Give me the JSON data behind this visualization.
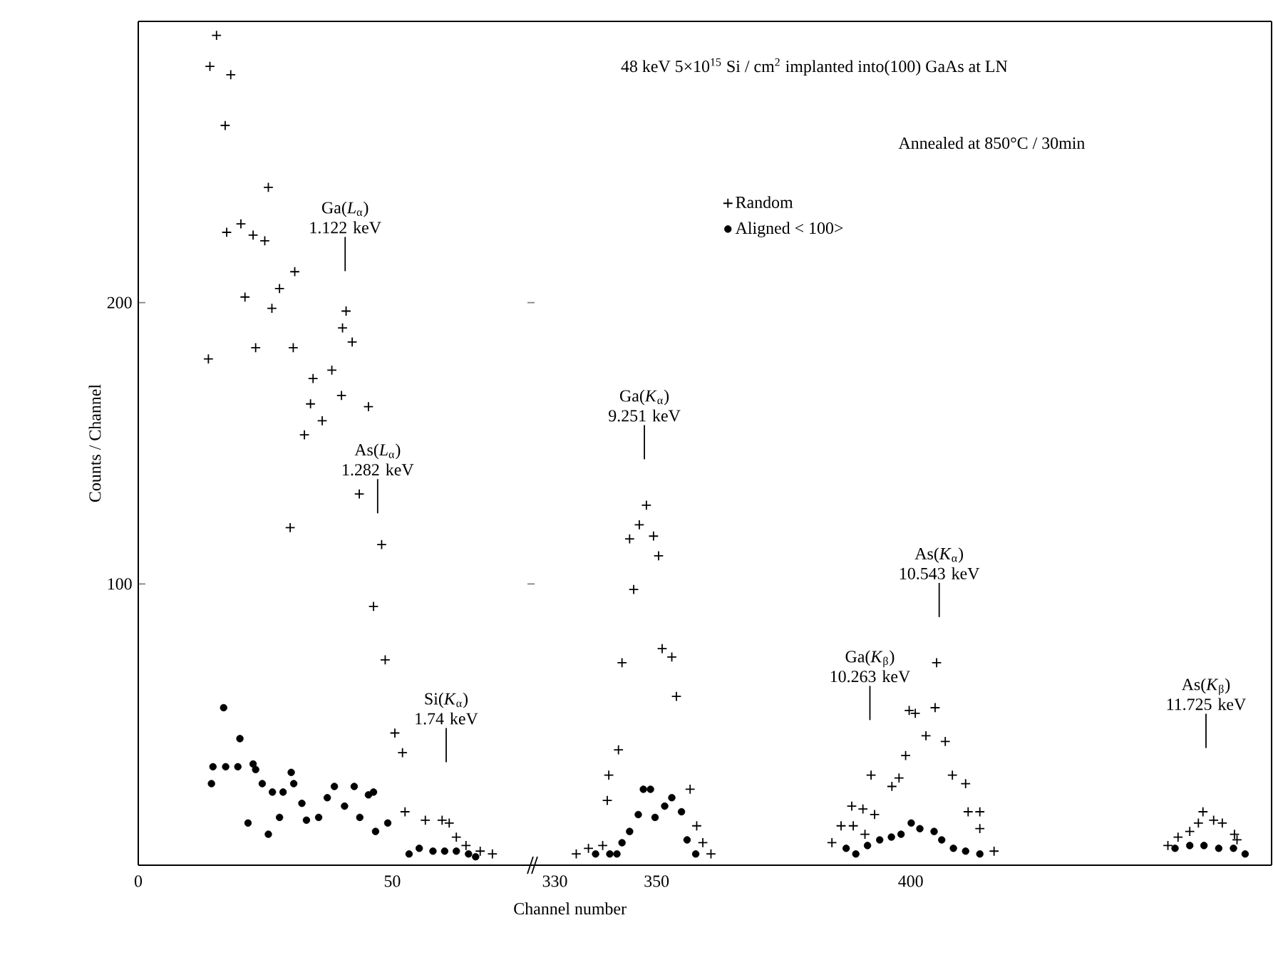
{
  "chart_data": [
    {
      "type": "scatter",
      "ylabel": "Counts / Channel",
      "xlim": [
        0,
        78
      ],
      "ylim": [
        0,
        300
      ],
      "xticks": [
        0,
        50
      ],
      "yticks": [
        100,
        200
      ],
      "series": [
        {
          "color": "#000000",
          "marker": "cross",
          "x": [
            15.4,
            14.1,
            18.2,
            17.1,
            25.6,
            17.4,
            20.2,
            22.6,
            24.9,
            30.8,
            27.8,
            21.0,
            26.3,
            40.9,
            40.2,
            42.1,
            13.8,
            23.1,
            30.5,
            34.4,
            38.1,
            40.0,
            33.9,
            36.2,
            45.3,
            32.7,
            43.5,
            29.9,
            47.9,
            46.3,
            48.6,
            50.5,
            52.0,
            52.5,
            56.5,
            59.8,
            61.2,
            62.6,
            64.5,
            67.3,
            69.7
          ],
          "values": [
            295,
            284,
            281,
            263,
            241,
            225,
            228,
            224,
            222,
            211,
            205,
            202,
            198,
            197,
            191,
            186,
            180,
            184,
            184,
            173,
            176,
            167,
            164,
            158,
            163,
            153,
            132,
            120,
            114,
            92,
            73,
            47,
            40,
            19,
            16,
            16,
            15,
            10,
            7,
            5,
            4
          ]
        },
        {
          "color": "#000000",
          "marker": "circle",
          "x": [
            16.8,
            20.0,
            14.7,
            17.2,
            19.6,
            14.4,
            22.6,
            23.1,
            24.4,
            26.4,
            28.5,
            30.1,
            30.6,
            32.2,
            33.1,
            35.5,
            37.2,
            38.6,
            40.6,
            42.5,
            45.3,
            46.3,
            43.6,
            46.7,
            49.1,
            21.6,
            25.6,
            27.8,
            53.3,
            55.3,
            58.0,
            60.3,
            62.6,
            65.0,
            66.4
          ],
          "values": [
            56,
            45,
            35,
            35,
            35,
            29,
            36,
            34,
            29,
            26,
            26,
            33,
            29,
            22,
            16,
            17,
            24,
            28,
            21,
            28,
            25,
            26,
            17,
            12,
            15,
            15,
            11,
            17,
            4,
            6,
            5,
            5,
            5,
            4,
            3
          ]
        }
      ],
      "annotations": [
        "Ga(*L*$_{α}$) 1.122 keV",
        "As(*L*$_{α}$) 1.282 keV",
        "Si(*K*$_{α}$) 1.74 keV"
      ]
    },
    {
      "type": "scatter",
      "title": "48 keV 5×10$^{15}$ Si / cm$^{2}$ implanted into(100) GaAs at LN",
      "subtitle": "Annealed at 850°C / 30min",
      "xlabel": "Channel number",
      "xlim": [
        326,
        471
      ],
      "ylim": [
        0,
        300
      ],
      "xticks": [
        330,
        350,
        400
      ],
      "tick_labels": "x",
      "legend": "top",
      "series": [
        {
          "name": "Random",
          "color": "#000000",
          "marker": "cross",
          "x": [
            348.0,
            346.6,
            344.7,
            349.4,
            350.4,
            345.5,
            343.2,
            351.1,
            353.0,
            353.9,
            342.5,
            340.6,
            340.3,
            356.6,
            357.9,
            359.1,
            360.7,
            334.2,
            336.6,
            339.4,
            405.1,
            399.7,
            400.9,
            404.8,
            403.0,
            406.8,
            399.0,
            392.2,
            397.7,
            396.3,
            408.2,
            410.8,
            411.3,
            413.6,
            413.6,
            388.4,
            390.6,
            392.9,
            386.3,
            388.7,
            391.0,
            384.5,
            416.4,
            457.5,
            459.6,
            461.3,
            456.6,
            454.9,
            463.7,
            452.6,
            450.6,
            464.2
          ],
          "values": [
            128,
            121,
            116,
            117,
            110,
            98,
            72,
            77,
            74,
            60,
            41,
            32,
            23,
            27,
            14,
            8,
            4,
            4,
            6,
            7,
            72,
            55,
            54,
            56,
            46,
            44,
            39,
            32,
            31,
            28,
            32,
            29,
            19,
            19,
            13,
            21,
            20,
            18,
            14,
            14,
            11,
            8,
            5,
            19,
            16,
            15,
            15,
            12,
            11,
            10,
            7,
            9
          ]
        },
        {
          "name": "Aligned < 100>",
          "color": "#000000",
          "marker": "circle",
          "x": [
            347.4,
            348.8,
            353.0,
            351.6,
            354.9,
            346.4,
            349.7,
            344.7,
            343.2,
            356.0,
            357.7,
            338.0,
            340.8,
            342.2,
            387.3,
            389.2,
            391.5,
            393.9,
            396.2,
            398.1,
            400.1,
            401.8,
            404.6,
            406.1,
            408.4,
            410.8,
            413.6,
            452.0,
            454.9,
            457.7,
            460.6,
            463.5,
            465.8
          ],
          "values": [
            27,
            27,
            24,
            21,
            19,
            18,
            17,
            12,
            8,
            9,
            4,
            4,
            4,
            4,
            6,
            4,
            7,
            9,
            10,
            11,
            15,
            13,
            12,
            9,
            6,
            5,
            4,
            6,
            7,
            7,
            6,
            6,
            4
          ]
        }
      ],
      "annotations": [
        "Ga(*K*$_{α}$) 9.251 keV",
        "Ga(*K*$_{β}$) 10.263 keV",
        "As(*K*$_{α}$) 10.543 keV",
        "As(*K*$_{β}$) 11.725 keV"
      ]
    }
  ]
}
